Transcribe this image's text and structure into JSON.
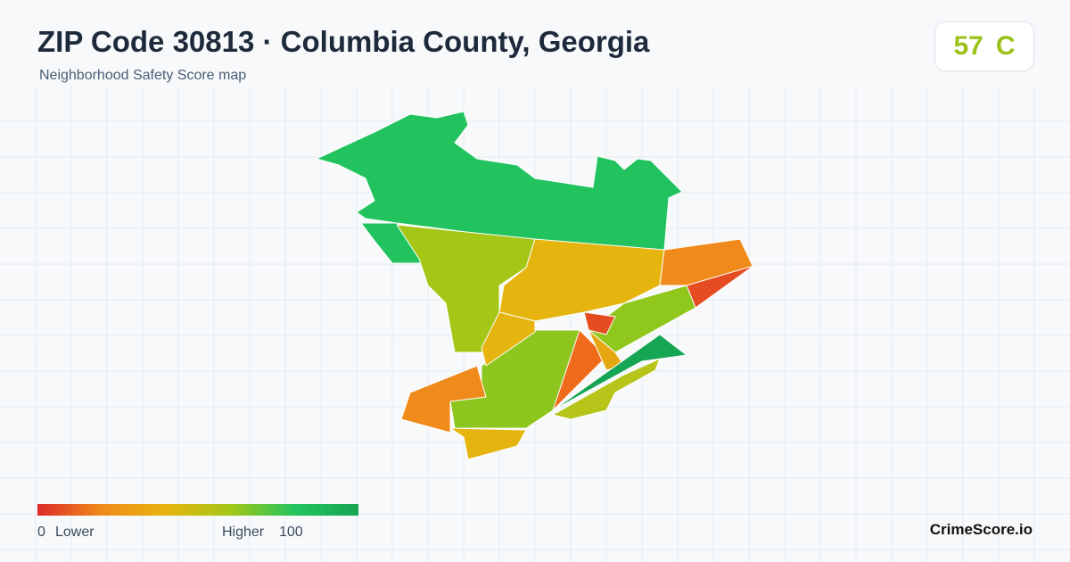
{
  "header": {
    "title": "ZIP Code 30813 · Columbia County, Georgia",
    "subtitle": "Neighborhood Safety Score map"
  },
  "score": {
    "value": "57",
    "grade": "C"
  },
  "legend": {
    "min": "0",
    "min_label": "Lower",
    "max_label": "Higher",
    "max": "100"
  },
  "brand": "CrimeScore.io"
}
